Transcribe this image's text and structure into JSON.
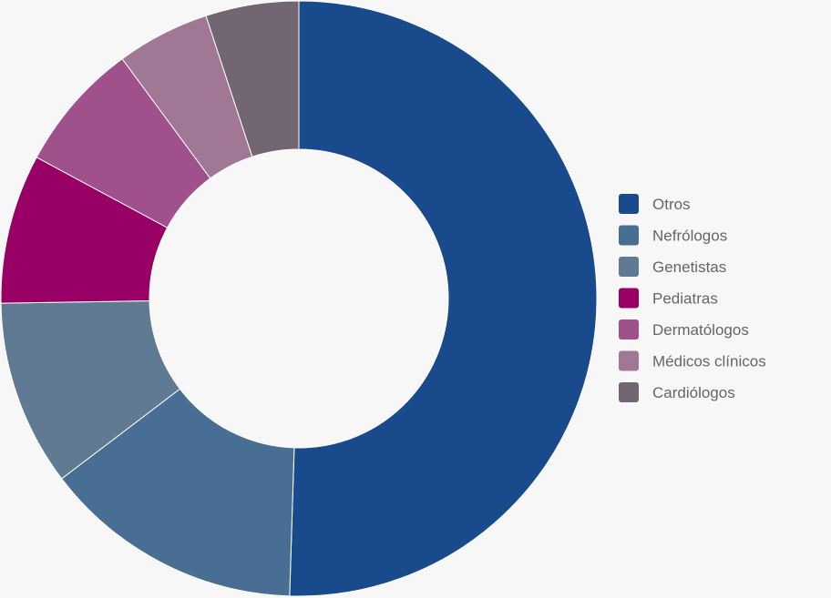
{
  "chart_data": {
    "type": "pie",
    "variant": "donut",
    "title": "",
    "categories": [
      "Otros",
      "Nefrólogos",
      "Genetistas",
      "Pediatras",
      "Dermatólogos",
      "Médicos clínicos",
      "Cardiólogos"
    ],
    "values": [
      51.0,
      14.3,
      10.2,
      8.2,
      7.1,
      5.1,
      5.1
    ],
    "colors": [
      "#184a8c",
      "#486e94",
      "#5f7a92",
      "#990066",
      "#a0508a",
      "#a07896",
      "#726672"
    ],
    "legend_position": "right"
  }
}
